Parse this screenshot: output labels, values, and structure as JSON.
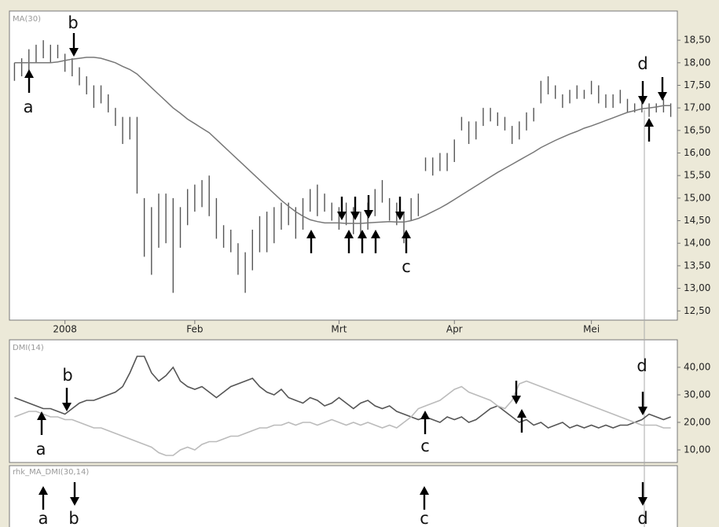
{
  "chart_data": [
    {
      "type": "ohlc",
      "title": "MA(30)",
      "low": [
        17.6,
        17.7,
        17.8,
        18.0,
        18.1,
        18.0,
        18.1,
        17.8,
        17.7,
        17.5,
        17.3,
        17.0,
        17.1,
        16.9,
        16.6,
        16.2,
        16.3,
        15.1,
        13.7,
        13.3,
        13.9,
        14.0,
        12.9,
        13.9,
        14.4,
        14.7,
        14.8,
        14.6,
        14.1,
        13.9,
        13.8,
        13.3,
        12.9,
        13.4,
        13.8,
        13.8,
        14.0,
        14.3,
        14.4,
        14.1,
        14.3,
        14.7,
        14.6,
        14.7,
        14.5,
        14.3,
        14.4,
        14.2,
        14.1,
        14.3,
        14.6,
        14.9,
        14.5,
        14.4,
        14.0,
        14.5,
        14.6,
        15.6,
        15.5,
        15.6,
        15.6,
        15.8,
        16.5,
        16.2,
        16.3,
        16.6,
        16.7,
        16.6,
        16.5,
        16.2,
        16.3,
        16.5,
        16.7,
        17.1,
        17.3,
        17.2,
        17.0,
        17.1,
        17.2,
        17.2,
        17.3,
        17.1,
        17.0,
        17.0,
        17.1,
        16.9,
        16.9,
        16.9,
        16.8,
        16.9,
        16.9,
        16.8
      ],
      "high": [
        18.0,
        18.1,
        18.3,
        18.4,
        18.5,
        18.4,
        18.4,
        18.2,
        18.1,
        17.9,
        17.7,
        17.5,
        17.5,
        17.3,
        17.0,
        16.8,
        16.8,
        16.8,
        15.0,
        14.8,
        15.1,
        15.1,
        15.0,
        14.8,
        15.2,
        15.3,
        15.4,
        15.5,
        15.0,
        14.4,
        14.3,
        14.0,
        13.8,
        14.3,
        14.6,
        14.7,
        14.8,
        14.9,
        14.9,
        14.8,
        15.0,
        15.2,
        15.3,
        15.1,
        14.9,
        14.8,
        14.9,
        14.8,
        14.7,
        14.9,
        15.2,
        15.4,
        15.0,
        14.9,
        14.7,
        15.0,
        15.1,
        15.9,
        15.9,
        16.0,
        16.0,
        16.3,
        16.8,
        16.7,
        16.7,
        17.0,
        17.0,
        16.9,
        16.8,
        16.6,
        16.7,
        16.9,
        17.0,
        17.6,
        17.7,
        17.5,
        17.3,
        17.4,
        17.5,
        17.4,
        17.6,
        17.5,
        17.3,
        17.3,
        17.4,
        17.2,
        17.1,
        17.2,
        17.1,
        17.1,
        17.2,
        17.1
      ],
      "ma": [
        18.0,
        18.0,
        18.0,
        18.0,
        18.0,
        18.0,
        18.02,
        18.05,
        18.08,
        18.1,
        18.12,
        18.12,
        18.1,
        18.05,
        18.0,
        17.92,
        17.85,
        17.75,
        17.6,
        17.45,
        17.3,
        17.15,
        17.0,
        16.88,
        16.75,
        16.65,
        16.55,
        16.45,
        16.3,
        16.15,
        16.0,
        15.85,
        15.7,
        15.55,
        15.4,
        15.25,
        15.1,
        14.95,
        14.82,
        14.7,
        14.6,
        14.52,
        14.48,
        14.45,
        14.45,
        14.45,
        14.44,
        14.44,
        14.44,
        14.45,
        14.46,
        14.47,
        14.48,
        14.47,
        14.47,
        14.5,
        14.55,
        14.62,
        14.7,
        14.78,
        14.87,
        14.97,
        15.07,
        15.17,
        15.27,
        15.37,
        15.47,
        15.57,
        15.66,
        15.75,
        15.84,
        15.93,
        16.02,
        16.12,
        16.2,
        16.28,
        16.35,
        16.42,
        16.48,
        16.55,
        16.6,
        16.66,
        16.72,
        16.78,
        16.84,
        16.9,
        16.94,
        16.98,
        17.0,
        17.02,
        17.05,
        17.05
      ],
      "xlim": [
        -0.7,
        91.7
      ],
      "xticks": [
        {
          "value": 7,
          "label": "2008"
        },
        {
          "value": 25,
          "label": "Feb"
        },
        {
          "value": 45,
          "label": "Mrt"
        },
        {
          "value": 61,
          "label": "Apr"
        },
        {
          "value": 80,
          "label": "Mei"
        }
      ],
      "ylim": [
        12.33,
        19.13
      ],
      "yticks": [
        {
          "value": 12.5,
          "label": "12,50"
        },
        {
          "value": 13,
          "label": "13,00"
        },
        {
          "value": 13.5,
          "label": "13,50"
        },
        {
          "value": 14,
          "label": "14,00"
        },
        {
          "value": 14.5,
          "label": "14,50"
        },
        {
          "value": 15,
          "label": "15,00"
        },
        {
          "value": 15.5,
          "label": "15,50"
        },
        {
          "value": 16,
          "label": "16,00"
        },
        {
          "value": 16.5,
          "label": "16,50"
        },
        {
          "value": 17,
          "label": "17,00"
        },
        {
          "value": 17.5,
          "label": "17,50"
        },
        {
          "value": 18,
          "label": "18,00"
        },
        {
          "value": 18.5,
          "label": "18,50"
        }
      ],
      "bar_color": "#555555",
      "ma_color": "#777777",
      "annotations": [
        "a",
        "b",
        "c",
        "d"
      ]
    },
    {
      "type": "line",
      "title": "DMI(14)",
      "series": [
        {
          "color": "#555555",
          "values": [
            29,
            28,
            27,
            26,
            25,
            25,
            24,
            23,
            25,
            27,
            28,
            28,
            29,
            30,
            31,
            33,
            38,
            44,
            44,
            38,
            35,
            37,
            40,
            35,
            33,
            32,
            33,
            31,
            29,
            31,
            33,
            34,
            35,
            36,
            33,
            31,
            30,
            32,
            29,
            28,
            27,
            29,
            28,
            26,
            27,
            29,
            27,
            25,
            27,
            28,
            26,
            25,
            26,
            24,
            23,
            22,
            21,
            22,
            21,
            20,
            22,
            21,
            22,
            20,
            21,
            23,
            25,
            26,
            24,
            22,
            20,
            21,
            19,
            20,
            18,
            19,
            20,
            18,
            19,
            18,
            19,
            18,
            19,
            18,
            19,
            19,
            20,
            21,
            23,
            22,
            21,
            22
          ]
        },
        {
          "color": "#bbbbbb",
          "values": [
            22,
            23,
            24,
            24,
            23,
            22,
            22,
            21,
            21,
            20,
            19,
            18,
            18,
            17,
            16,
            15,
            14,
            13,
            12,
            11,
            9,
            8,
            8,
            10,
            11,
            10,
            12,
            13,
            13,
            14,
            15,
            15,
            16,
            17,
            18,
            18,
            19,
            19,
            20,
            19,
            20,
            20,
            19,
            20,
            21,
            20,
            19,
            20,
            19,
            20,
            19,
            18,
            19,
            18,
            20,
            22,
            25,
            26,
            27,
            28,
            30,
            32,
            33,
            31,
            30,
            29,
            28,
            26,
            25,
            28,
            34,
            35,
            34,
            33,
            32,
            31,
            30,
            29,
            28,
            27,
            26,
            25,
            24,
            23,
            22,
            21,
            20,
            19,
            19,
            19,
            18,
            18
          ]
        }
      ],
      "xlim": [
        -0.7,
        91.7
      ],
      "ylim": [
        6,
        49.7
      ],
      "yticks": [
        {
          "value": 10,
          "label": "10,00"
        },
        {
          "value": 20,
          "label": "20,00"
        },
        {
          "value": 30,
          "label": "30,00"
        },
        {
          "value": 40,
          "label": "40,00"
        }
      ],
      "annotations": [
        "a",
        "b",
        "c",
        "d"
      ]
    },
    {
      "type": "signals",
      "title": "rhk_MA_DMI(30,14)",
      "annotations": [
        "a",
        "b",
        "c",
        "d"
      ]
    }
  ]
}
